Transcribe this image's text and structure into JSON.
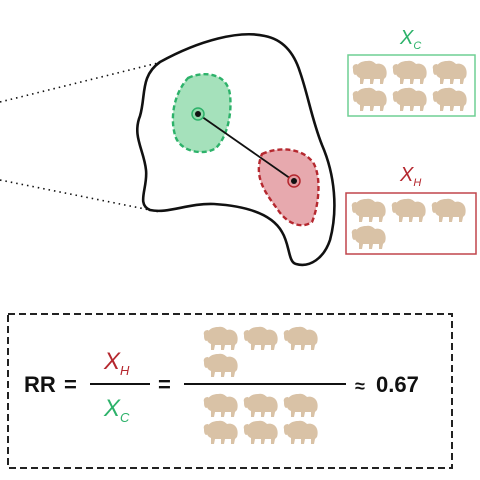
{
  "colors": {
    "control": "#2db26a",
    "control_fill": "#8fd9aa",
    "control_box": "#6fcf94",
    "hunt": "#b5282f",
    "hunt_fill": "#e39aa0",
    "hunt_box": "#c0454b",
    "bison": "#d9c2a6",
    "outline": "#111111"
  },
  "icons": {
    "animal": "bison-icon"
  },
  "groups": {
    "control": {
      "symbol": "X",
      "subscript": "C",
      "bison_count": 6
    },
    "hunt": {
      "symbol": "X",
      "subscript": "H",
      "bison_count": 4
    }
  },
  "equation": {
    "lhs": "RR",
    "equals": "=",
    "numerator": {
      "symbol": "X",
      "subscript": "H"
    },
    "denominator": {
      "symbol": "X",
      "subscript": "C"
    },
    "equals2": "=",
    "approx": "≈",
    "result": "0.67"
  }
}
